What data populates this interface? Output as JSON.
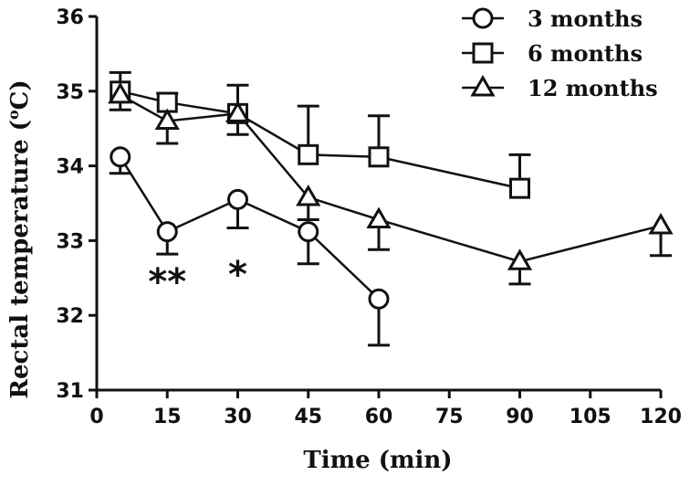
{
  "chart_data": {
    "type": "line",
    "xlabel": "Time (min)",
    "ylabel": "Rectal temperature (",
    "ylabel_sup": "o",
    "ylabel_unit": "C)",
    "xlim": [
      0,
      120
    ],
    "ylim": [
      31,
      36
    ],
    "xticks": [
      0,
      15,
      30,
      45,
      60,
      75,
      90,
      105,
      120
    ],
    "yticks": [
      31,
      32,
      33,
      34,
      35,
      36
    ],
    "grid": false,
    "legend": "top-right",
    "series": [
      {
        "name": "3 months",
        "marker": "circle",
        "x": [
          5,
          15,
          30,
          45,
          60
        ],
        "y": [
          34.12,
          33.12,
          33.55,
          33.12,
          32.22
        ],
        "err": [
          0.22,
          0.3,
          0.38,
          0.43,
          0.62
        ],
        "err_dir": [
          -1,
          -1,
          -1,
          -1,
          -1
        ]
      },
      {
        "name": "6 months",
        "marker": "square",
        "x": [
          5,
          15,
          30,
          45,
          60,
          90
        ],
        "y": [
          35.0,
          34.85,
          34.7,
          34.15,
          34.12,
          33.7
        ],
        "err": [
          0.25,
          0.12,
          0.38,
          0.65,
          0.55,
          0.45
        ],
        "err_dir": [
          1,
          1,
          1,
          1,
          1,
          1
        ]
      },
      {
        "name": "12 months",
        "marker": "triangle",
        "x": [
          5,
          15,
          30,
          45,
          60,
          90,
          120
        ],
        "y": [
          34.95,
          34.6,
          34.7,
          33.58,
          33.28,
          32.72,
          33.2
        ],
        "err": [
          0.2,
          0.3,
          0.28,
          0.3,
          0.4,
          0.3,
          0.4
        ],
        "err_dir": [
          -1,
          -1,
          -1,
          -1,
          -1,
          -1,
          -1
        ]
      }
    ],
    "annotations": [
      {
        "text": "**",
        "x": 15,
        "y": 32.55
      },
      {
        "text": "*",
        "x": 30,
        "y": 32.65
      }
    ]
  }
}
